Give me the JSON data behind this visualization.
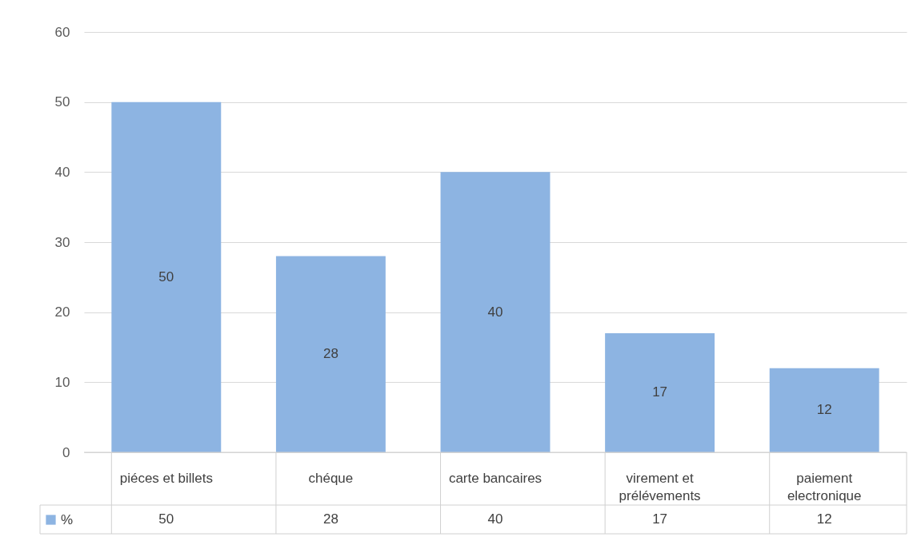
{
  "chart_data": {
    "type": "bar",
    "categories": [
      "piéces et billets",
      "chéque",
      "carte bancaires",
      "virement et prélévements",
      "paiement electronique"
    ],
    "series": [
      {
        "name": "%",
        "color": "#8db4e2",
        "values": [
          50,
          28,
          40,
          17,
          12
        ]
      }
    ],
    "annotations": [
      "50",
      "28",
      "40",
      "17",
      "12"
    ],
    "ylim": [
      0,
      60
    ],
    "yticks": [
      0,
      10,
      20,
      30,
      40,
      50,
      60
    ],
    "grid": "y",
    "data_labels": true,
    "legend": "bottom"
  }
}
